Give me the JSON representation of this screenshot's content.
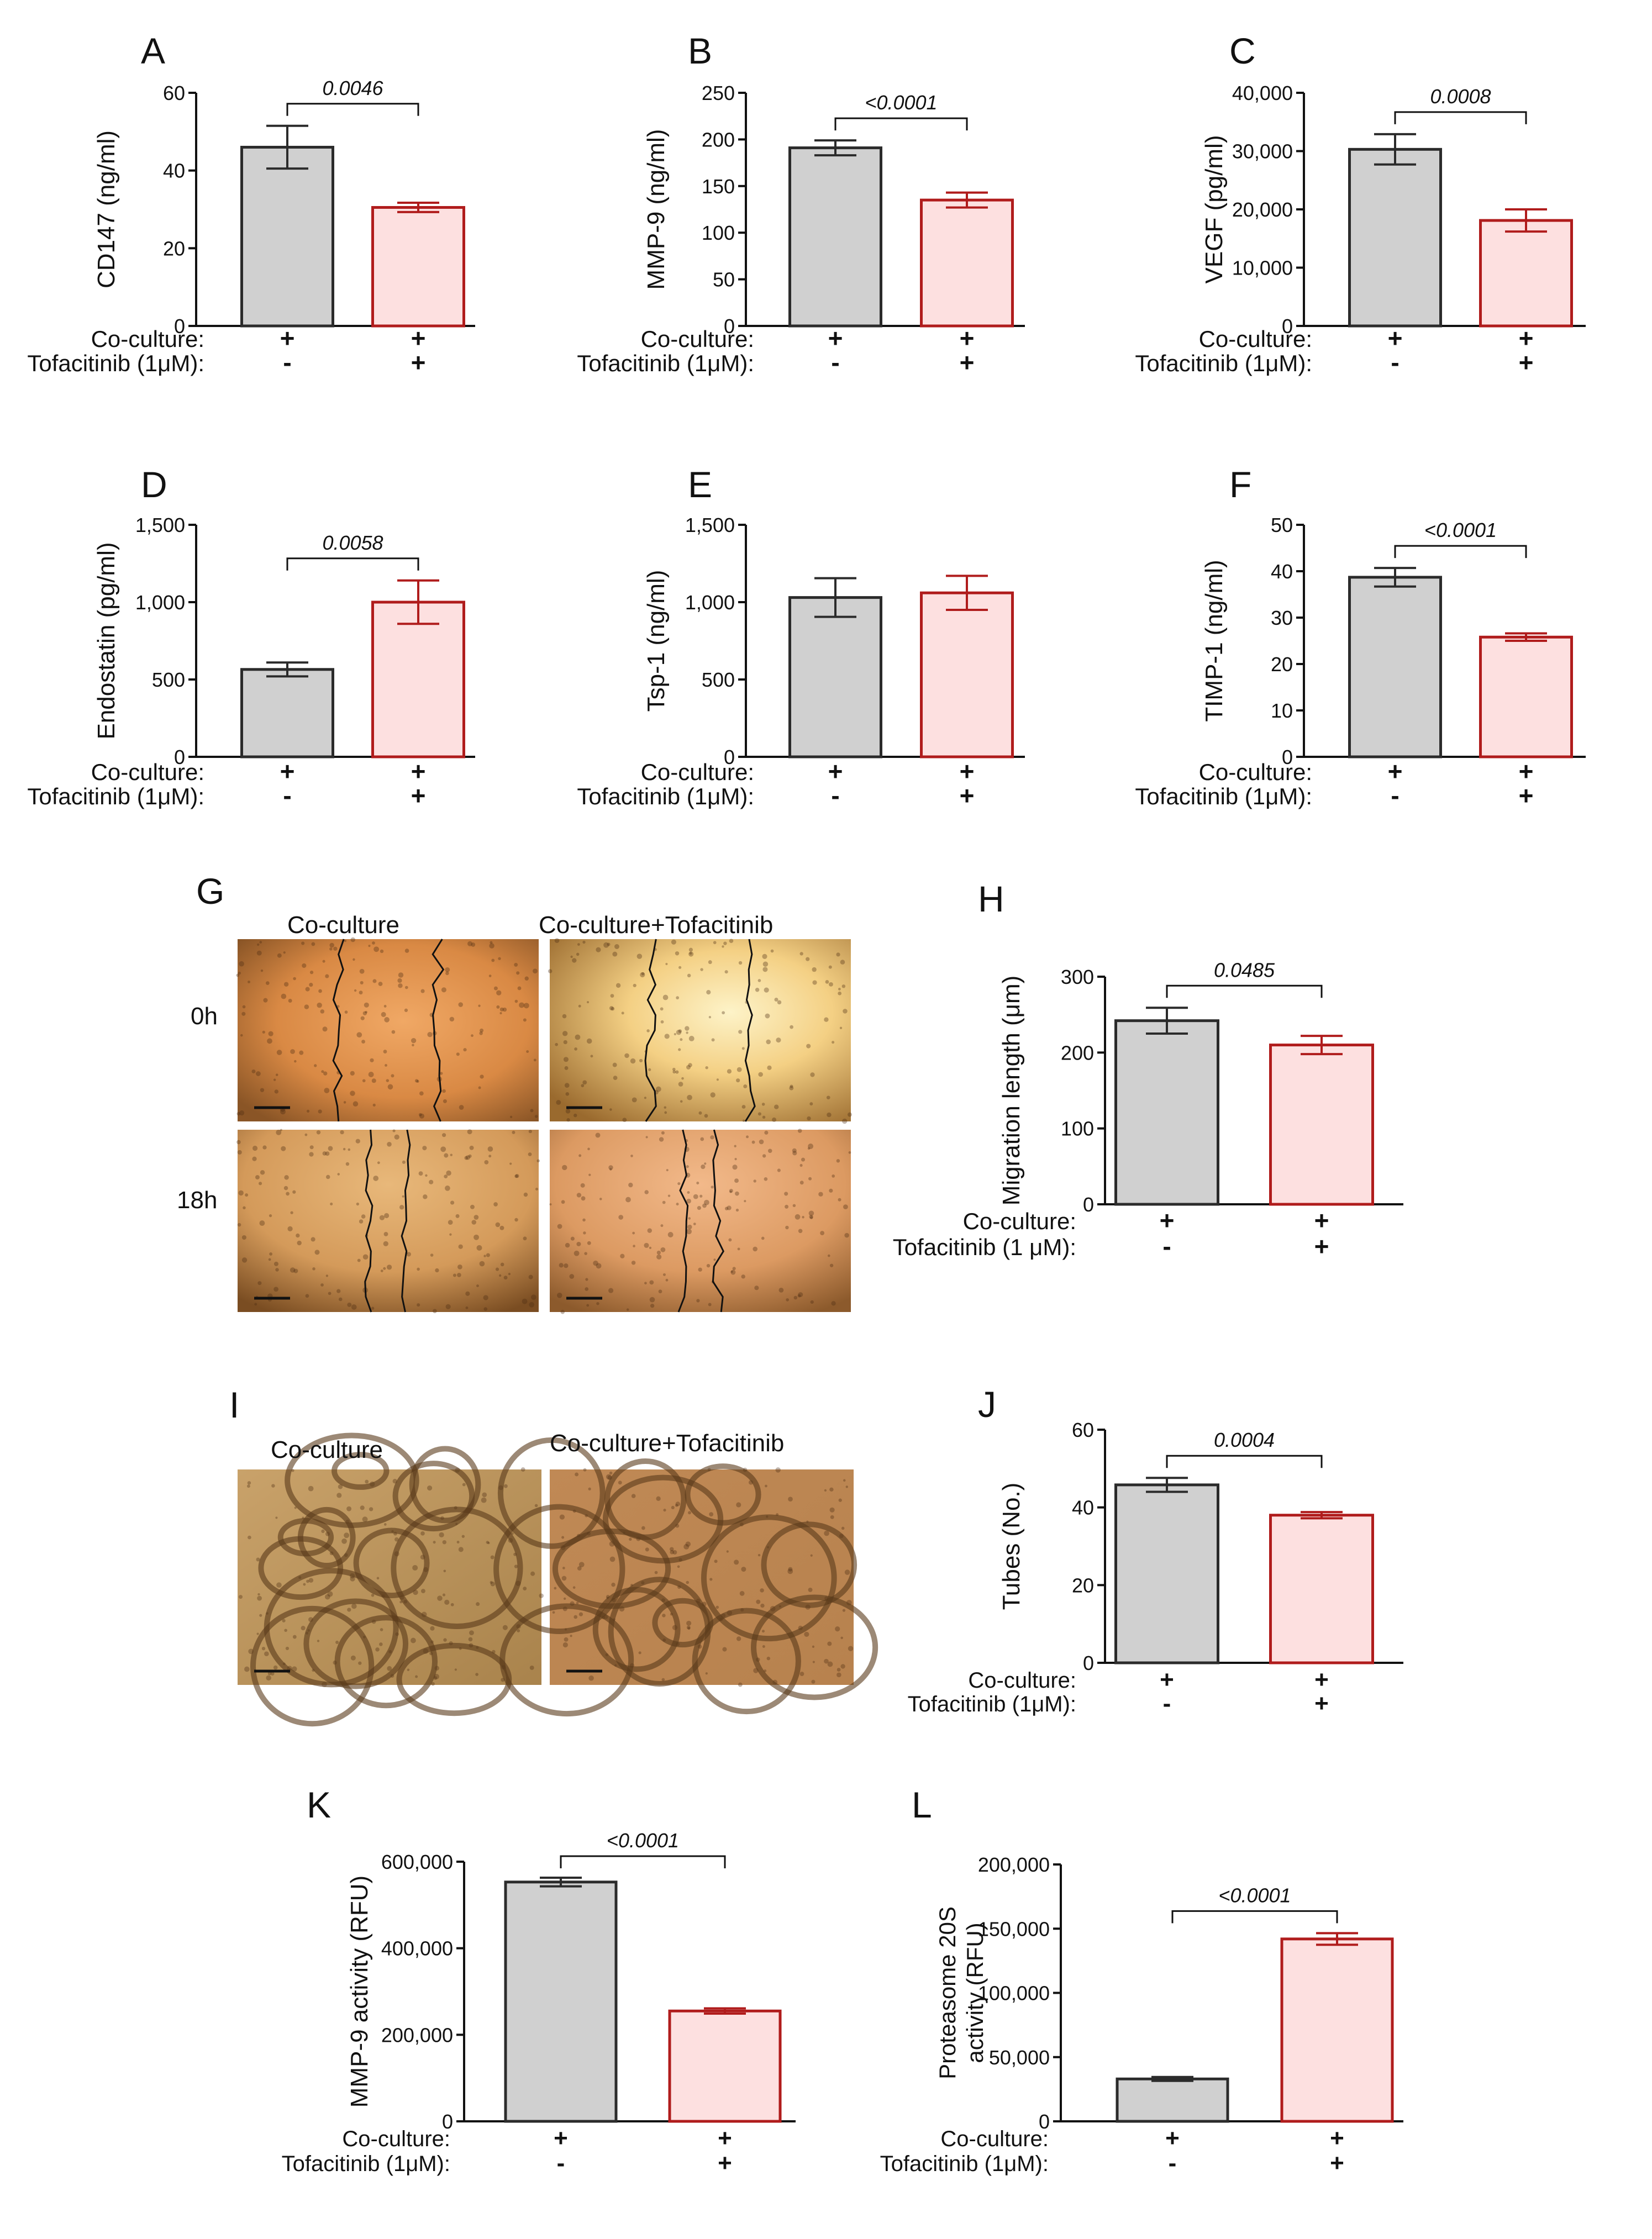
{
  "figure": {
    "colors": {
      "control_fill": "#d0d0d0",
      "control_stroke": "#2b2b2b",
      "treated_fill": "#fde0e0",
      "treated_stroke": "#b01c1c",
      "axis": "#111111"
    },
    "condition_rows": [
      "Co-culture:",
      "Tofacitinib (1μM):"
    ]
  },
  "chart_data": [
    {
      "panel": "A",
      "type": "bar",
      "ylabel": "CD147 (ng/ml)",
      "yticks": [
        "0",
        "20",
        "40",
        "60"
      ],
      "ylim": [
        0,
        60
      ],
      "values": [
        46,
        30.5
      ],
      "errors": [
        5.5,
        1.2
      ],
      "pvalue": "0.0046",
      "row_labels": [
        "Co-culture:",
        "Tofacitinib (1μM):"
      ],
      "row_marks": [
        [
          "+",
          "+"
        ],
        [
          "-",
          "+"
        ]
      ]
    },
    {
      "panel": "B",
      "type": "bar",
      "ylabel": "MMP-9 (ng/ml)",
      "yticks": [
        "0",
        "50",
        "100",
        "150",
        "200",
        "250"
      ],
      "ylim": [
        0,
        250
      ],
      "values": [
        191,
        135
      ],
      "errors": [
        8,
        8
      ],
      "pvalue": "<0.0001",
      "row_labels": [
        "Co-culture:",
        "Tofacitinib (1μM):"
      ],
      "row_marks": [
        [
          "+",
          "+"
        ],
        [
          "-",
          "+"
        ]
      ]
    },
    {
      "panel": "C",
      "type": "bar",
      "ylabel": "VEGF (pg/ml)",
      "yticks": [
        "0",
        "10,000",
        "20,000",
        "30,000",
        "40,000"
      ],
      "ylim": [
        0,
        40000
      ],
      "values": [
        30300,
        18100
      ],
      "errors": [
        2600,
        1900
      ],
      "pvalue": "0.0008",
      "row_labels": [
        "Co-culture:",
        "Tofacitinib (1μM):"
      ],
      "row_marks": [
        [
          "+",
          "+"
        ],
        [
          "-",
          "+"
        ]
      ]
    },
    {
      "panel": "D",
      "type": "bar",
      "ylabel": "Endostatin (pg/ml)",
      "yticks": [
        "0",
        "500",
        "1,000",
        "1,500"
      ],
      "ylim": [
        0,
        1500
      ],
      "values": [
        565,
        1000
      ],
      "errors": [
        45,
        140
      ],
      "pvalue": "0.0058",
      "row_labels": [
        "Co-culture:",
        "Tofacitinib (1μM):"
      ],
      "row_marks": [
        [
          "+",
          "+"
        ],
        [
          "-",
          "+"
        ]
      ]
    },
    {
      "panel": "E",
      "type": "bar",
      "ylabel": "Tsp-1 (ng/ml)",
      "yticks": [
        "0",
        "500",
        "1,000",
        "1,500"
      ],
      "ylim": [
        0,
        1500
      ],
      "values": [
        1030,
        1060
      ],
      "errors": [
        125,
        110
      ],
      "pvalue": "",
      "row_labels": [
        "Co-culture:",
        "Tofacitinib (1μM):"
      ],
      "row_marks": [
        [
          "+",
          "+"
        ],
        [
          "-",
          "+"
        ]
      ]
    },
    {
      "panel": "F",
      "type": "bar",
      "ylabel": "TIMP-1 (ng/ml)",
      "yticks": [
        "0",
        "10",
        "20",
        "30",
        "40",
        "50"
      ],
      "ylim": [
        0,
        50
      ],
      "values": [
        38.7,
        25.8
      ],
      "errors": [
        2,
        0.8
      ],
      "pvalue": "<0.0001",
      "row_labels": [
        "Co-culture:",
        "Tofacitinib (1μM):"
      ],
      "row_marks": [
        [
          "+",
          "+"
        ],
        [
          "-",
          "+"
        ]
      ]
    },
    {
      "panel": "H",
      "type": "bar",
      "ylabel": "Migration length (μm)",
      "yticks": [
        "0",
        "100",
        "200",
        "300"
      ],
      "ylim": [
        0,
        300
      ],
      "values": [
        242,
        210
      ],
      "errors": [
        17,
        12
      ],
      "pvalue": "0.0485",
      "row_labels": [
        "Co-culture:",
        "Tofacitinib (1 μM):"
      ],
      "row_marks": [
        [
          "+",
          "+"
        ],
        [
          "-",
          "+"
        ]
      ]
    },
    {
      "panel": "J",
      "type": "bar",
      "ylabel": "Tubes (No.)",
      "yticks": [
        "0",
        "20",
        "40",
        "60"
      ],
      "ylim": [
        0,
        60
      ],
      "values": [
        45.8,
        38
      ],
      "errors": [
        1.8,
        0.8
      ],
      "pvalue": "0.0004",
      "row_labels": [
        "Co-culture:",
        "Tofacitinib (1μM):"
      ],
      "row_marks": [
        [
          "+",
          "+"
        ],
        [
          "-",
          "+"
        ]
      ]
    },
    {
      "panel": "K",
      "type": "bar",
      "ylabel": "MMP-9 activity (RFU)",
      "yticks": [
        "0",
        "200,000",
        "400,000",
        "600,000"
      ],
      "ylim": [
        0,
        600000
      ],
      "values": [
        553000,
        255000
      ],
      "errors": [
        10000,
        6000
      ],
      "pvalue": "<0.0001",
      "row_labels": [
        "Co-culture:",
        "Tofacitinib (1μM):"
      ],
      "row_marks": [
        [
          "+",
          "+"
        ],
        [
          "-",
          "+"
        ]
      ]
    },
    {
      "panel": "L",
      "type": "bar",
      "ylabel": "Proteasome 20S activity (RFU)",
      "yticks": [
        "0",
        "50,000",
        "100,000",
        "150,000",
        "200,000"
      ],
      "ylim": [
        0,
        200000
      ],
      "values": [
        33000,
        142000
      ],
      "errors": [
        1500,
        4500
      ],
      "pvalue": "<0.0001",
      "row_labels": [
        "Co-culture:",
        "Tofacitinib (1μM):"
      ],
      "row_marks": [
        [
          "+",
          "+"
        ],
        [
          "-",
          "+"
        ]
      ]
    }
  ],
  "micrographs": {
    "G": {
      "letter": "G",
      "col_headers": [
        "Co-culture",
        "Co-culture+Tofacitinib"
      ],
      "row_headers": [
        "0h",
        "18h"
      ]
    },
    "I": {
      "letter": "I",
      "col_headers": [
        "Co-culture",
        "Co-culture+Tofacitinib"
      ]
    }
  }
}
